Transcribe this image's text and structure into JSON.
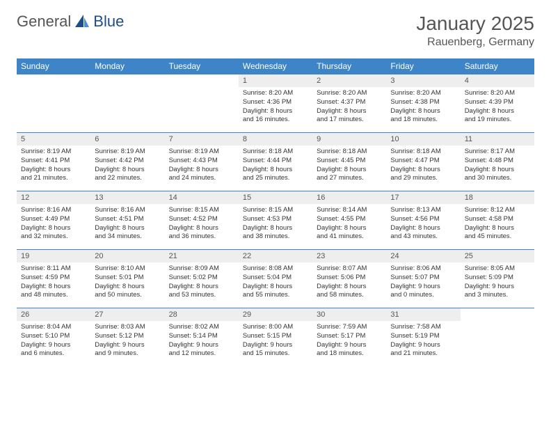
{
  "logo": {
    "part1": "General",
    "part2": "Blue"
  },
  "header": {
    "title": "January 2025",
    "location": "Rauenberg, Germany"
  },
  "colors": {
    "header_bg": "#3d85c6",
    "header_text": "#ffffff",
    "daynum_bg": "#eeeeee",
    "border": "#3d85c6",
    "logo_accent": "#1d4e89"
  },
  "day_names": [
    "Sunday",
    "Monday",
    "Tuesday",
    "Wednesday",
    "Thursday",
    "Friday",
    "Saturday"
  ],
  "weeks": [
    [
      null,
      null,
      null,
      {
        "n": "1",
        "sr": "Sunrise: 8:20 AM",
        "ss": "Sunset: 4:36 PM",
        "d1": "Daylight: 8 hours",
        "d2": "and 16 minutes."
      },
      {
        "n": "2",
        "sr": "Sunrise: 8:20 AM",
        "ss": "Sunset: 4:37 PM",
        "d1": "Daylight: 8 hours",
        "d2": "and 17 minutes."
      },
      {
        "n": "3",
        "sr": "Sunrise: 8:20 AM",
        "ss": "Sunset: 4:38 PM",
        "d1": "Daylight: 8 hours",
        "d2": "and 18 minutes."
      },
      {
        "n": "4",
        "sr": "Sunrise: 8:20 AM",
        "ss": "Sunset: 4:39 PM",
        "d1": "Daylight: 8 hours",
        "d2": "and 19 minutes."
      }
    ],
    [
      {
        "n": "5",
        "sr": "Sunrise: 8:19 AM",
        "ss": "Sunset: 4:41 PM",
        "d1": "Daylight: 8 hours",
        "d2": "and 21 minutes."
      },
      {
        "n": "6",
        "sr": "Sunrise: 8:19 AM",
        "ss": "Sunset: 4:42 PM",
        "d1": "Daylight: 8 hours",
        "d2": "and 22 minutes."
      },
      {
        "n": "7",
        "sr": "Sunrise: 8:19 AM",
        "ss": "Sunset: 4:43 PM",
        "d1": "Daylight: 8 hours",
        "d2": "and 24 minutes."
      },
      {
        "n": "8",
        "sr": "Sunrise: 8:18 AM",
        "ss": "Sunset: 4:44 PM",
        "d1": "Daylight: 8 hours",
        "d2": "and 25 minutes."
      },
      {
        "n": "9",
        "sr": "Sunrise: 8:18 AM",
        "ss": "Sunset: 4:45 PM",
        "d1": "Daylight: 8 hours",
        "d2": "and 27 minutes."
      },
      {
        "n": "10",
        "sr": "Sunrise: 8:18 AM",
        "ss": "Sunset: 4:47 PM",
        "d1": "Daylight: 8 hours",
        "d2": "and 29 minutes."
      },
      {
        "n": "11",
        "sr": "Sunrise: 8:17 AM",
        "ss": "Sunset: 4:48 PM",
        "d1": "Daylight: 8 hours",
        "d2": "and 30 minutes."
      }
    ],
    [
      {
        "n": "12",
        "sr": "Sunrise: 8:16 AM",
        "ss": "Sunset: 4:49 PM",
        "d1": "Daylight: 8 hours",
        "d2": "and 32 minutes."
      },
      {
        "n": "13",
        "sr": "Sunrise: 8:16 AM",
        "ss": "Sunset: 4:51 PM",
        "d1": "Daylight: 8 hours",
        "d2": "and 34 minutes."
      },
      {
        "n": "14",
        "sr": "Sunrise: 8:15 AM",
        "ss": "Sunset: 4:52 PM",
        "d1": "Daylight: 8 hours",
        "d2": "and 36 minutes."
      },
      {
        "n": "15",
        "sr": "Sunrise: 8:15 AM",
        "ss": "Sunset: 4:53 PM",
        "d1": "Daylight: 8 hours",
        "d2": "and 38 minutes."
      },
      {
        "n": "16",
        "sr": "Sunrise: 8:14 AM",
        "ss": "Sunset: 4:55 PM",
        "d1": "Daylight: 8 hours",
        "d2": "and 41 minutes."
      },
      {
        "n": "17",
        "sr": "Sunrise: 8:13 AM",
        "ss": "Sunset: 4:56 PM",
        "d1": "Daylight: 8 hours",
        "d2": "and 43 minutes."
      },
      {
        "n": "18",
        "sr": "Sunrise: 8:12 AM",
        "ss": "Sunset: 4:58 PM",
        "d1": "Daylight: 8 hours",
        "d2": "and 45 minutes."
      }
    ],
    [
      {
        "n": "19",
        "sr": "Sunrise: 8:11 AM",
        "ss": "Sunset: 4:59 PM",
        "d1": "Daylight: 8 hours",
        "d2": "and 48 minutes."
      },
      {
        "n": "20",
        "sr": "Sunrise: 8:10 AM",
        "ss": "Sunset: 5:01 PM",
        "d1": "Daylight: 8 hours",
        "d2": "and 50 minutes."
      },
      {
        "n": "21",
        "sr": "Sunrise: 8:09 AM",
        "ss": "Sunset: 5:02 PM",
        "d1": "Daylight: 8 hours",
        "d2": "and 53 minutes."
      },
      {
        "n": "22",
        "sr": "Sunrise: 8:08 AM",
        "ss": "Sunset: 5:04 PM",
        "d1": "Daylight: 8 hours",
        "d2": "and 55 minutes."
      },
      {
        "n": "23",
        "sr": "Sunrise: 8:07 AM",
        "ss": "Sunset: 5:06 PM",
        "d1": "Daylight: 8 hours",
        "d2": "and 58 minutes."
      },
      {
        "n": "24",
        "sr": "Sunrise: 8:06 AM",
        "ss": "Sunset: 5:07 PM",
        "d1": "Daylight: 9 hours",
        "d2": "and 0 minutes."
      },
      {
        "n": "25",
        "sr": "Sunrise: 8:05 AM",
        "ss": "Sunset: 5:09 PM",
        "d1": "Daylight: 9 hours",
        "d2": "and 3 minutes."
      }
    ],
    [
      {
        "n": "26",
        "sr": "Sunrise: 8:04 AM",
        "ss": "Sunset: 5:10 PM",
        "d1": "Daylight: 9 hours",
        "d2": "and 6 minutes."
      },
      {
        "n": "27",
        "sr": "Sunrise: 8:03 AM",
        "ss": "Sunset: 5:12 PM",
        "d1": "Daylight: 9 hours",
        "d2": "and 9 minutes."
      },
      {
        "n": "28",
        "sr": "Sunrise: 8:02 AM",
        "ss": "Sunset: 5:14 PM",
        "d1": "Daylight: 9 hours",
        "d2": "and 12 minutes."
      },
      {
        "n": "29",
        "sr": "Sunrise: 8:00 AM",
        "ss": "Sunset: 5:15 PM",
        "d1": "Daylight: 9 hours",
        "d2": "and 15 minutes."
      },
      {
        "n": "30",
        "sr": "Sunrise: 7:59 AM",
        "ss": "Sunset: 5:17 PM",
        "d1": "Daylight: 9 hours",
        "d2": "and 18 minutes."
      },
      {
        "n": "31",
        "sr": "Sunrise: 7:58 AM",
        "ss": "Sunset: 5:19 PM",
        "d1": "Daylight: 9 hours",
        "d2": "and 21 minutes."
      },
      null
    ]
  ]
}
